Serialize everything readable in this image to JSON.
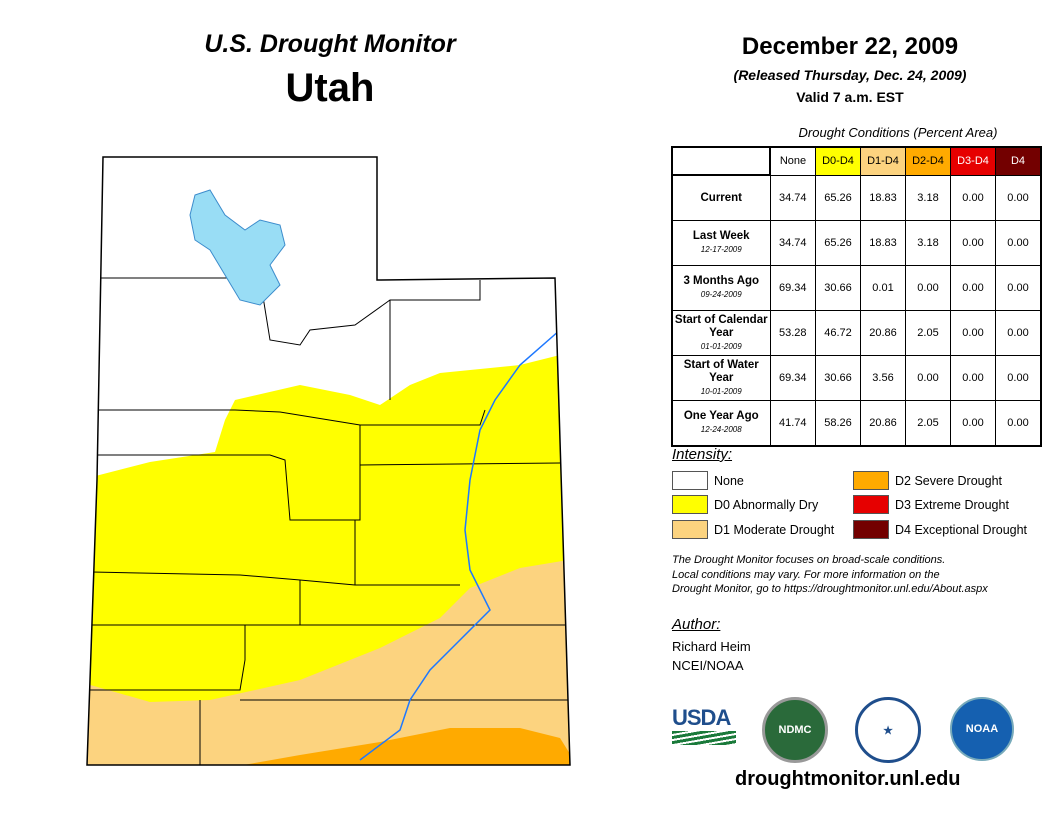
{
  "title": "U.S. Drought Monitor",
  "state": "Utah",
  "date": "December 22, 2009",
  "released": "(Released Thursday, Dec. 24, 2009)",
  "valid": "Valid 7 a.m. EST",
  "table": {
    "caption": "Drought Conditions (Percent Area)",
    "headers": [
      "None",
      "D0-D4",
      "D1-D4",
      "D2-D4",
      "D3-D4",
      "D4"
    ],
    "header_colors": [
      "#ffffff",
      "#ffff00",
      "#fcd37f",
      "#ffaa00",
      "#e60000",
      "#730000"
    ],
    "rows": [
      {
        "label": "Current",
        "date": "",
        "values": [
          "34.74",
          "65.26",
          "18.83",
          "3.18",
          "0.00",
          "0.00"
        ]
      },
      {
        "label": "Last Week",
        "date": "12-17-2009",
        "values": [
          "34.74",
          "65.26",
          "18.83",
          "3.18",
          "0.00",
          "0.00"
        ]
      },
      {
        "label": "3 Months Ago",
        "date": "09-24-2009",
        "values": [
          "69.34",
          "30.66",
          "0.01",
          "0.00",
          "0.00",
          "0.00"
        ]
      },
      {
        "label": "Start of Calendar Year",
        "date": "01-01-2009",
        "values": [
          "53.28",
          "46.72",
          "20.86",
          "2.05",
          "0.00",
          "0.00"
        ]
      },
      {
        "label": "Start of Water Year",
        "date": "10-01-2009",
        "values": [
          "69.34",
          "30.66",
          "3.56",
          "0.00",
          "0.00",
          "0.00"
        ]
      },
      {
        "label": "One Year Ago",
        "date": "12-24-2008",
        "values": [
          "41.74",
          "58.26",
          "20.86",
          "2.05",
          "0.00",
          "0.00"
        ]
      }
    ]
  },
  "legend": {
    "title": "Intensity:",
    "items": [
      {
        "label": "None",
        "color": "#ffffff"
      },
      {
        "label": "D0 Abnormally Dry",
        "color": "#ffff00"
      },
      {
        "label": "D1 Moderate Drought",
        "color": "#fcd37f"
      },
      {
        "label": "D2 Severe Drought",
        "color": "#ffaa00"
      },
      {
        "label": "D3 Extreme Drought",
        "color": "#e60000"
      },
      {
        "label": "D4 Exceptional Drought",
        "color": "#730000"
      }
    ]
  },
  "note": [
    "The Drought Monitor focuses on broad-scale conditions.",
    "Local conditions may vary. For more information on the",
    "Drought Monitor, go to https://droughtmonitor.unl.edu/About.aspx"
  ],
  "author": {
    "title": "Author:",
    "name": "Richard Heim",
    "org": "NCEI/NOAA"
  },
  "logos": [
    "USDA",
    "NDMC",
    "NOAA"
  ],
  "url": "droughtmonitor.unl.edu"
}
